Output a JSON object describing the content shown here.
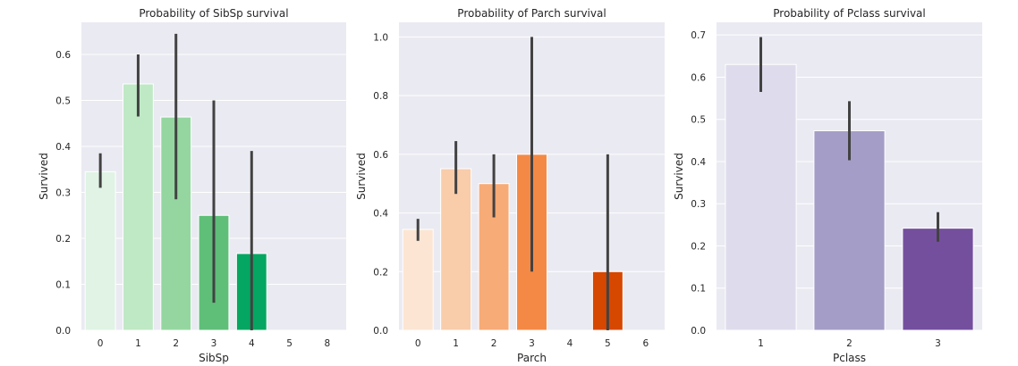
{
  "chart_data": [
    {
      "type": "bar",
      "title": "Probability of SibSp survival",
      "xlabel": "SibSp",
      "ylabel": "Survived",
      "categories": [
        "0",
        "1",
        "2",
        "3",
        "4",
        "5",
        "8"
      ],
      "values": [
        0.345,
        0.536,
        0.464,
        0.25,
        0.167,
        0.0,
        0.0
      ],
      "error_bars": [
        [
          0.31,
          0.385
        ],
        [
          0.465,
          0.6
        ],
        [
          0.285,
          0.645
        ],
        [
          0.06,
          0.5
        ],
        [
          0.0,
          0.39
        ],
        [
          0.0,
          0.0
        ],
        [
          0.0,
          0.0
        ]
      ],
      "colors": [
        "#e0f3e5",
        "#bfe8c5",
        "#95d6a0",
        "#5fbf79",
        "#05a661",
        "#05a661",
        "#05a661"
      ],
      "ylim": [
        0,
        0.67
      ],
      "yticks": [
        0.0,
        0.1,
        0.2,
        0.3,
        0.4,
        0.5,
        0.6
      ],
      "ytick_labels": [
        "0.0",
        "0.1",
        "0.2",
        "0.3",
        "0.4",
        "0.5",
        "0.6"
      ],
      "grid": true
    },
    {
      "type": "bar",
      "title": "Probability of Parch survival",
      "xlabel": "Parch",
      "ylabel": "Survived",
      "categories": [
        "0",
        "1",
        "2",
        "3",
        "4",
        "5",
        "6"
      ],
      "values": [
        0.344,
        0.551,
        0.5,
        0.6,
        0.0,
        0.2,
        0.0
      ],
      "error_bars": [
        [
          0.305,
          0.38
        ],
        [
          0.465,
          0.645
        ],
        [
          0.385,
          0.6
        ],
        [
          0.2,
          1.0
        ],
        [
          0.0,
          0.0
        ],
        [
          0.0,
          0.6
        ],
        [
          0.0,
          0.0
        ]
      ],
      "colors": [
        "#fce5d3",
        "#f9ccaa",
        "#f7ab76",
        "#f48945",
        "#e8560f",
        "#d64700",
        "#d64700"
      ],
      "ylim": [
        0,
        1.05
      ],
      "yticks": [
        0.0,
        0.2,
        0.4,
        0.6,
        0.8,
        1.0
      ],
      "ytick_labels": [
        "0.0",
        "0.2",
        "0.4",
        "0.6",
        "0.8",
        "1.0"
      ],
      "grid": true
    },
    {
      "type": "bar",
      "title": "Probability of Pclass survival",
      "xlabel": "Pclass",
      "ylabel": "Survived",
      "categories": [
        "1",
        "2",
        "3"
      ],
      "values": [
        0.63,
        0.473,
        0.242
      ],
      "error_bars": [
        [
          0.565,
          0.695
        ],
        [
          0.403,
          0.543
        ],
        [
          0.21,
          0.28
        ]
      ],
      "colors": [
        "#dedcec",
        "#a49dc7",
        "#744f9e"
      ],
      "ylim": [
        0,
        0.73
      ],
      "yticks": [
        0.0,
        0.1,
        0.2,
        0.3,
        0.4,
        0.5,
        0.6,
        0.7
      ],
      "ytick_labels": [
        "0.0",
        "0.1",
        "0.2",
        "0.3",
        "0.4",
        "0.5",
        "0.6",
        "0.7"
      ],
      "grid": true
    }
  ],
  "style": {
    "plot_background": "#eaeaf2",
    "grid_color": "#ffffff",
    "error_bar_color": "#424242",
    "text_color": "#262626"
  }
}
